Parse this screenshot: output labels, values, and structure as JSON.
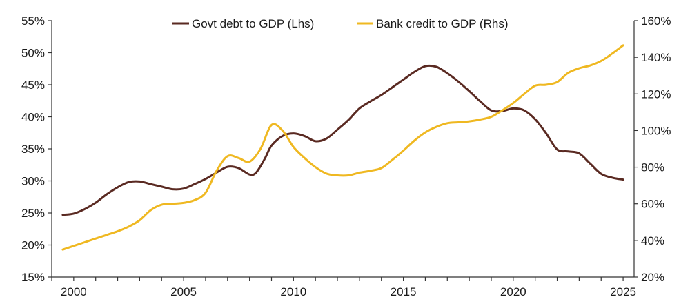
{
  "chart_data": {
    "type": "line",
    "title": "",
    "xlabel": "",
    "ylabel_left": "",
    "ylabel_right": "",
    "grid": false,
    "legend_position": "top-center",
    "x_ticks": [
      2000,
      2005,
      2010,
      2015,
      2020,
      2025
    ],
    "x_range": [
      2000,
      2025
    ],
    "y_left": {
      "range": [
        15,
        55
      ],
      "ticks": [
        15,
        20,
        25,
        30,
        35,
        40,
        45,
        50,
        55
      ],
      "tick_labels": [
        "15%",
        "20%",
        "25%",
        "30%",
        "35%",
        "40%",
        "45%",
        "50%",
        "55%"
      ]
    },
    "y_right": {
      "range": [
        20,
        160
      ],
      "ticks": [
        20,
        40,
        60,
        80,
        100,
        120,
        140,
        160
      ],
      "tick_labels": [
        "20%",
        "40%",
        "60%",
        "80%",
        "100%",
        "120%",
        "140%",
        "160%"
      ]
    },
    "series": [
      {
        "name": "Govt debt to GDP (Lhs)",
        "axis": "left",
        "color": "#5a2a22",
        "x": [
          1999.5,
          2000.0,
          2000.5,
          2001.0,
          2001.5,
          2002.0,
          2002.5,
          2003.0,
          2003.5,
          2004.0,
          2004.5,
          2005.0,
          2005.5,
          2006.0,
          2006.5,
          2007.0,
          2007.5,
          2008.0,
          2008.3,
          2008.7,
          2009.0,
          2009.5,
          2010.0,
          2010.5,
          2011.0,
          2011.5,
          2012.0,
          2012.5,
          2013.0,
          2013.5,
          2014.0,
          2014.5,
          2015.0,
          2015.5,
          2016.0,
          2016.5,
          2017.0,
          2017.5,
          2018.0,
          2018.5,
          2019.0,
          2019.5,
          2020.0,
          2020.5,
          2021.0,
          2021.5,
          2022.0,
          2022.5,
          2023.0,
          2023.5,
          2024.0,
          2024.5,
          2025.0
        ],
        "values": [
          24.7,
          24.9,
          25.6,
          26.6,
          27.9,
          29.0,
          29.8,
          29.9,
          29.5,
          29.1,
          28.7,
          28.8,
          29.5,
          30.3,
          31.3,
          32.2,
          32.0,
          31.0,
          31.3,
          33.5,
          35.5,
          37.0,
          37.4,
          37.0,
          36.2,
          36.6,
          38.0,
          39.5,
          41.3,
          42.4,
          43.4,
          44.6,
          45.8,
          47.0,
          47.9,
          47.8,
          46.8,
          45.5,
          44.0,
          42.4,
          41.0,
          40.9,
          41.3,
          41.0,
          39.6,
          37.4,
          34.9,
          34.6,
          34.3,
          32.7,
          31.1,
          30.5,
          30.2
        ]
      },
      {
        "name": "Bank credit to GDP (Rhs)",
        "axis": "right",
        "color": "#efb821",
        "x": [
          1999.5,
          2000.0,
          2000.5,
          2001.0,
          2001.5,
          2002.0,
          2002.5,
          2003.0,
          2003.5,
          2004.0,
          2004.5,
          2005.0,
          2005.5,
          2006.0,
          2006.5,
          2007.0,
          2007.5,
          2008.0,
          2008.5,
          2009.0,
          2009.5,
          2010.0,
          2010.5,
          2011.0,
          2011.5,
          2012.0,
          2012.5,
          2013.0,
          2013.5,
          2014.0,
          2014.5,
          2015.0,
          2015.5,
          2016.0,
          2016.5,
          2017.0,
          2017.5,
          2018.0,
          2018.5,
          2019.0,
          2019.5,
          2020.0,
          2020.5,
          2021.0,
          2021.5,
          2022.0,
          2022.5,
          2023.0,
          2023.5,
          2024.0,
          2024.5,
          2025.0
        ],
        "values": [
          35.0,
          37.0,
          39.0,
          41.0,
          43.0,
          45.0,
          47.5,
          51.0,
          56.5,
          59.5,
          60.0,
          60.5,
          62.0,
          66.0,
          78.0,
          86.0,
          85.0,
          83.0,
          90.0,
          103.0,
          100.0,
          91.0,
          85.0,
          80.0,
          76.5,
          75.5,
          75.5,
          77.0,
          78.0,
          79.5,
          84.0,
          89.0,
          94.5,
          99.0,
          102.0,
          104.0,
          104.5,
          105.0,
          106.0,
          107.5,
          111.0,
          115.0,
          120.0,
          124.5,
          125.0,
          126.5,
          131.5,
          134.0,
          135.5,
          138.0,
          142.0,
          146.5
        ]
      }
    ]
  }
}
